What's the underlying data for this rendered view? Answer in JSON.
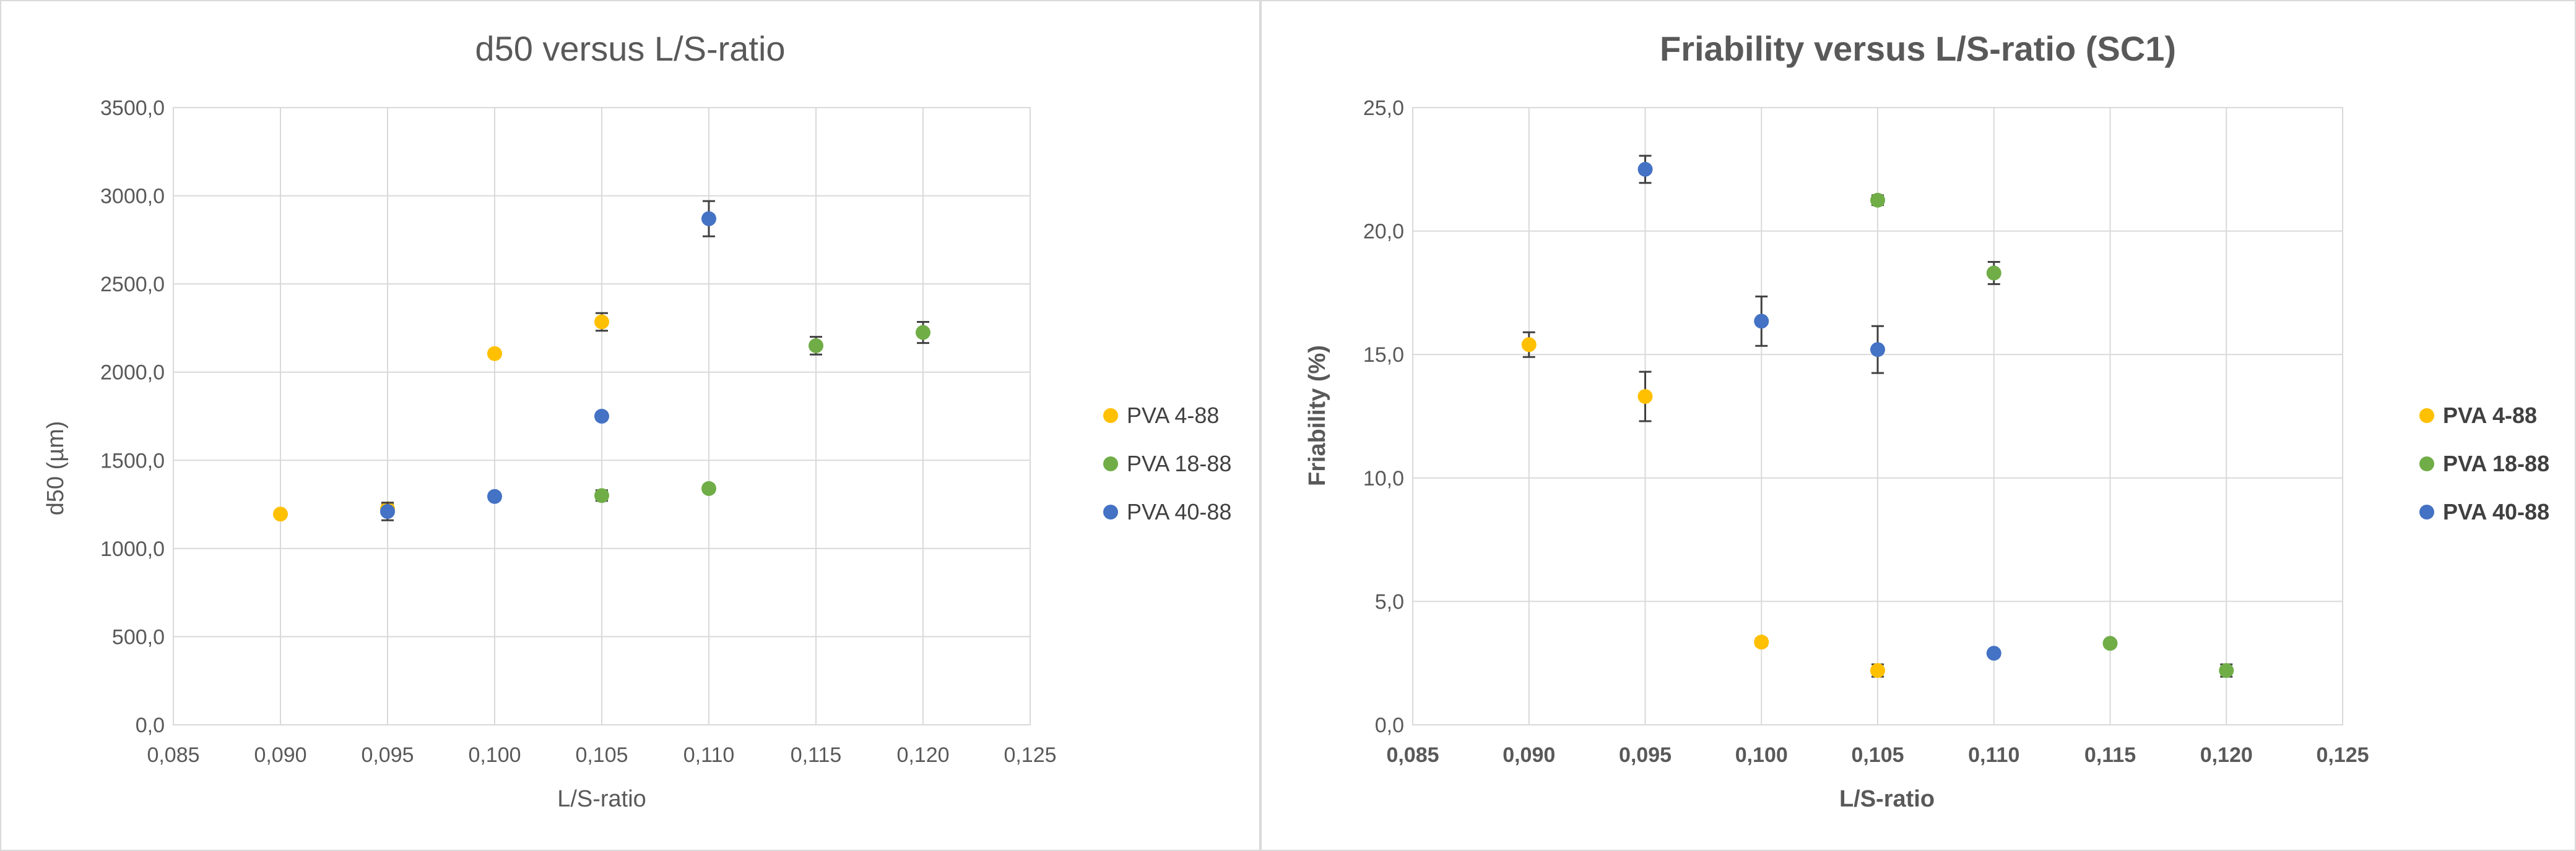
{
  "chart_data": [
    {
      "type": "scatter",
      "title": "d50 versus L/S-ratio",
      "xlabel": "L/S-ratio",
      "ylabel": "d50 (µm)",
      "xlim": [
        0.085,
        0.125
      ],
      "ylim": [
        0,
        3500
      ],
      "x_ticks": [
        "0,085",
        "0,090",
        "0,095",
        "0,100",
        "0,105",
        "0,110",
        "0,115",
        "0,120",
        "0,125"
      ],
      "y_ticks": [
        "0,0",
        "500,0",
        "1000,0",
        "1500,0",
        "2000,0",
        "2500,0",
        "3000,0",
        "3500,0"
      ],
      "grid": true,
      "legend_position": "right",
      "series": [
        {
          "name": "PVA 4-88",
          "color": "#FFC000",
          "points": [
            {
              "x": 0.09,
              "y": 1195,
              "err": 15
            },
            {
              "x": 0.095,
              "y": 1225,
              "err": 25
            },
            {
              "x": 0.1,
              "y": 2105,
              "err": 15
            },
            {
              "x": 0.105,
              "y": 2285,
              "err": 50
            }
          ]
        },
        {
          "name": "PVA 18-88",
          "color": "#70AD47",
          "points": [
            {
              "x": 0.105,
              "y": 1300,
              "err": 30
            },
            {
              "x": 0.11,
              "y": 1340,
              "err": 20
            },
            {
              "x": 0.115,
              "y": 2150,
              "err": 50
            },
            {
              "x": 0.12,
              "y": 2225,
              "err": 60
            }
          ]
        },
        {
          "name": "PVA 40-88",
          "color": "#4472C4",
          "points": [
            {
              "x": 0.095,
              "y": 1210,
              "err": 50
            },
            {
              "x": 0.1,
              "y": 1295,
              "err": 20
            },
            {
              "x": 0.105,
              "y": 1750,
              "err": 20
            },
            {
              "x": 0.11,
              "y": 2870,
              "err": 100
            }
          ]
        }
      ]
    },
    {
      "type": "scatter",
      "title": "Friability versus L/S-ratio (SC1)",
      "xlabel": "L/S-ratio",
      "ylabel": "Friability (%)",
      "xlim": [
        0.085,
        0.125
      ],
      "ylim": [
        0,
        25
      ],
      "x_ticks": [
        "0,085",
        "0,090",
        "0,095",
        "0,100",
        "0,105",
        "0,110",
        "0,115",
        "0,120",
        "0,125"
      ],
      "y_ticks": [
        "0,0",
        "5,0",
        "10,0",
        "15,0",
        "20,0",
        "25,0"
      ],
      "grid": true,
      "legend_position": "right",
      "series": [
        {
          "name": "PVA 4-88",
          "color": "#FFC000",
          "points": [
            {
              "x": 0.09,
              "y": 15.4,
              "err": 0.5
            },
            {
              "x": 0.095,
              "y": 13.3,
              "err": 1.0
            },
            {
              "x": 0.1,
              "y": 3.35,
              "err": 0.15
            },
            {
              "x": 0.105,
              "y": 2.2,
              "err": 0.25
            }
          ]
        },
        {
          "name": "PVA 18-88",
          "color": "#70AD47",
          "points": [
            {
              "x": 0.105,
              "y": 21.25,
              "err": 0.2
            },
            {
              "x": 0.11,
              "y": 18.3,
              "err": 0.45
            },
            {
              "x": 0.115,
              "y": 3.3,
              "err": 0.1
            },
            {
              "x": 0.12,
              "y": 2.2,
              "err": 0.25
            }
          ]
        },
        {
          "name": "PVA 40-88",
          "color": "#4472C4",
          "points": [
            {
              "x": 0.095,
              "y": 22.5,
              "err": 0.55
            },
            {
              "x": 0.1,
              "y": 16.35,
              "err": 1.0
            },
            {
              "x": 0.105,
              "y": 15.2,
              "err": 0.95
            },
            {
              "x": 0.11,
              "y": 2.9,
              "err": 0.1
            }
          ]
        }
      ]
    }
  ]
}
